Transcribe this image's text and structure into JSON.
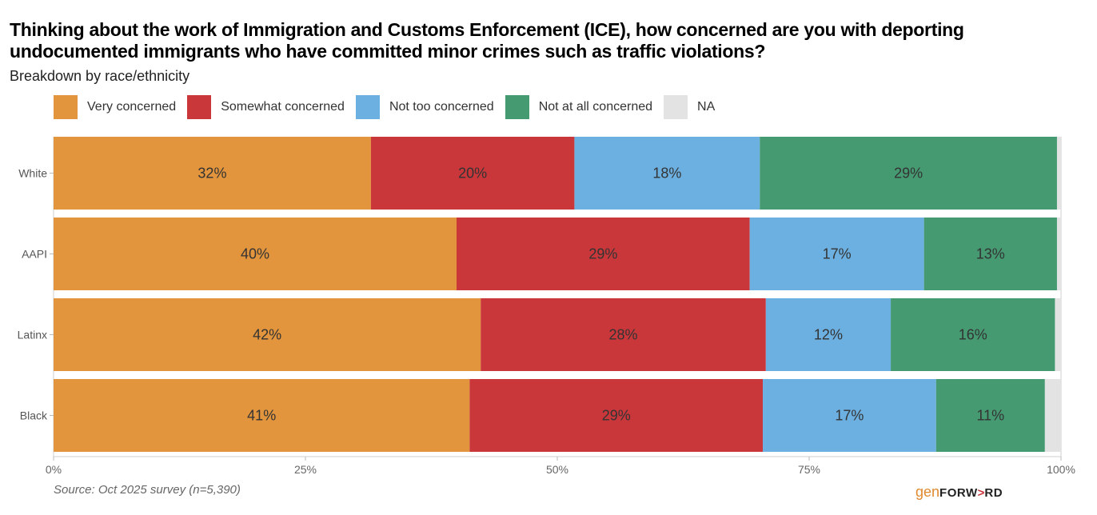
{
  "chart_data": {
    "type": "bar",
    "orientation": "horizontal",
    "stacked": true,
    "title": "Thinking about the work of Immigration and Customs Enforcement (ICE), how concerned are you with deporting undocumented immigrants who have committed minor crimes such as traffic violations?",
    "title_lines": [
      "Thinking about the work of Immigration and Customs Enforcement (ICE), how concerned are you with deporting",
      "undocumented immigrants who have committed minor crimes such as traffic violations?"
    ],
    "subtitle": "Breakdown by race/ethnicity",
    "categories": [
      "White",
      "AAPI",
      "Latinx",
      "Black"
    ],
    "series": [
      {
        "name": "Very concerned",
        "color": "#e2953c",
        "values": [
          31.5,
          40.0,
          42.4,
          41.3
        ],
        "labels": [
          "32%",
          "40%",
          "42%",
          "41%"
        ]
      },
      {
        "name": "Somewhat concerned",
        "color": "#c9373a",
        "values": [
          20.2,
          29.1,
          28.3,
          29.1
        ],
        "labels": [
          "20%",
          "29%",
          "28%",
          "29%"
        ]
      },
      {
        "name": "Not too concerned",
        "color": "#6cb0e1",
        "values": [
          18.4,
          17.3,
          12.4,
          17.2
        ],
        "labels": [
          "18%",
          "17%",
          "12%",
          "17%"
        ]
      },
      {
        "name": "Not at all concerned",
        "color": "#459a72",
        "values": [
          29.5,
          13.2,
          16.3,
          10.8
        ],
        "labels": [
          "29%",
          "13%",
          "16%",
          "11%"
        ]
      },
      {
        "name": "NA",
        "color": "#e3e3e3",
        "values": [
          0.4,
          0.4,
          0.6,
          1.6
        ],
        "labels": [
          "",
          "",
          "",
          ""
        ]
      }
    ],
    "xlim": [
      0,
      100
    ],
    "xticks": [
      0,
      25,
      50,
      75,
      100
    ],
    "xtick_labels": [
      "0%",
      "25%",
      "50%",
      "75%",
      "100%"
    ],
    "xlabel": "",
    "ylabel": "",
    "legend_position": "top-left",
    "grid": false
  },
  "source": "Source: Oct 2025 survey (n=5,390)",
  "logo": {
    "gen": "gen",
    "forward_pre": "FORW",
    "arrow": ">",
    "forward_post": "RD"
  }
}
